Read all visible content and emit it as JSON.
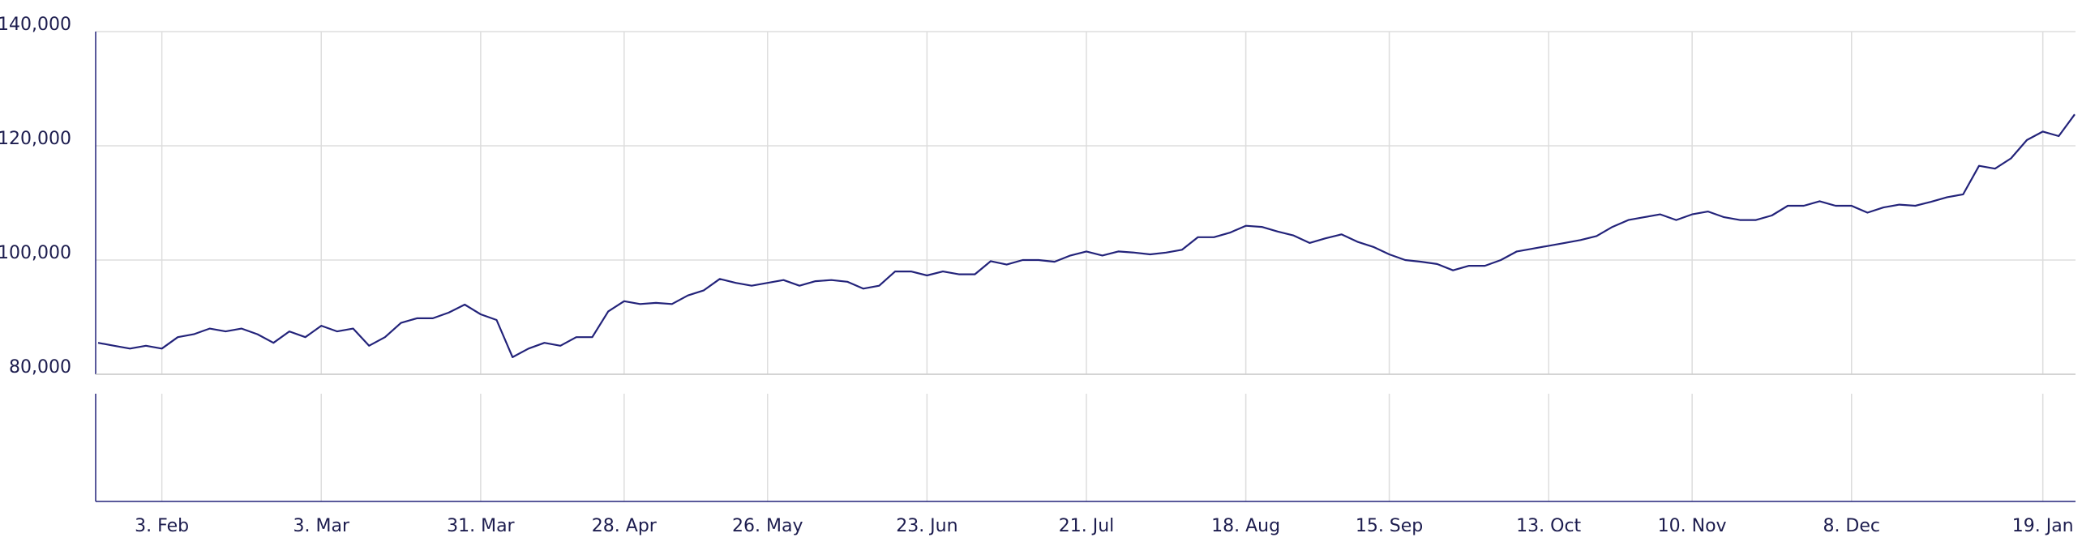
{
  "chart_data": {
    "type": "line",
    "categories": [
      null,
      null,
      null,
      null,
      "3. Feb",
      null,
      null,
      null,
      null,
      null,
      null,
      null,
      null,
      null,
      "3. Mar",
      null,
      null,
      null,
      null,
      null,
      null,
      null,
      null,
      null,
      "31. Mar",
      null,
      null,
      null,
      null,
      null,
      null,
      null,
      null,
      "28. Apr",
      null,
      null,
      null,
      null,
      null,
      null,
      null,
      null,
      "26. May",
      null,
      null,
      null,
      null,
      null,
      null,
      null,
      null,
      null,
      "23. Jun",
      null,
      null,
      null,
      null,
      null,
      null,
      null,
      null,
      null,
      "21. Jul",
      null,
      null,
      null,
      null,
      null,
      null,
      null,
      null,
      null,
      "18. Aug",
      null,
      null,
      null,
      null,
      null,
      null,
      null,
      null,
      "15. Sep",
      null,
      null,
      null,
      null,
      null,
      null,
      null,
      null,
      null,
      "13. Oct",
      null,
      null,
      null,
      null,
      null,
      null,
      null,
      null,
      "10. Nov",
      null,
      null,
      null,
      null,
      null,
      null,
      null,
      null,
      null,
      "8. Dec",
      null,
      null,
      null,
      null,
      null,
      null,
      null,
      null,
      null,
      null,
      null,
      "19. Jan",
      null,
      null
    ],
    "series": [
      {
        "color": "#23237a",
        "values": [
          85500,
          85000,
          84500,
          85000,
          84500,
          86500,
          87000,
          88000,
          87500,
          88000,
          87000,
          85500,
          87500,
          86500,
          88500,
          87500,
          88000,
          85000,
          86500,
          89000,
          89800,
          89800,
          90800,
          92200,
          90500,
          89500,
          83000,
          84500,
          85500,
          85000,
          86500,
          86500,
          91000,
          92800,
          92300,
          92500,
          92300,
          93800,
          94700,
          96700,
          96000,
          95500,
          96000,
          96500,
          95500,
          96300,
          96500,
          96200,
          95000,
          95500,
          98000,
          98000,
          97300,
          98000,
          97500,
          97500,
          99800,
          99200,
          100000,
          100000,
          99700,
          100800,
          101500,
          100800,
          101500,
          101300,
          101000,
          101300,
          101800,
          104000,
          104000,
          104800,
          106000,
          105800,
          105000,
          104300,
          103000,
          103800,
          104500,
          103200,
          102300,
          101000,
          100000,
          99700,
          99300,
          98200,
          99000,
          99000,
          100000,
          101500,
          102000,
          102500,
          103000,
          103500,
          104200,
          105800,
          107000,
          107500,
          108000,
          107000,
          108000,
          108500,
          107500,
          107000,
          107000,
          107800,
          109500,
          109500,
          110300,
          109500,
          109500,
          108300,
          109200,
          109700,
          109500,
          110200,
          111000,
          111500,
          116500,
          116000,
          117800,
          121000,
          122500,
          121700,
          125500
        ]
      }
    ],
    "ylim": [
      80000,
      140000
    ],
    "yticks": [
      {
        "value": 80000,
        "label": "80,000"
      },
      {
        "value": 100000,
        "label": "100,000"
      },
      {
        "value": 120000,
        "label": "120,000"
      },
      {
        "value": 140000,
        "label": "140,000"
      }
    ],
    "grid": true
  }
}
